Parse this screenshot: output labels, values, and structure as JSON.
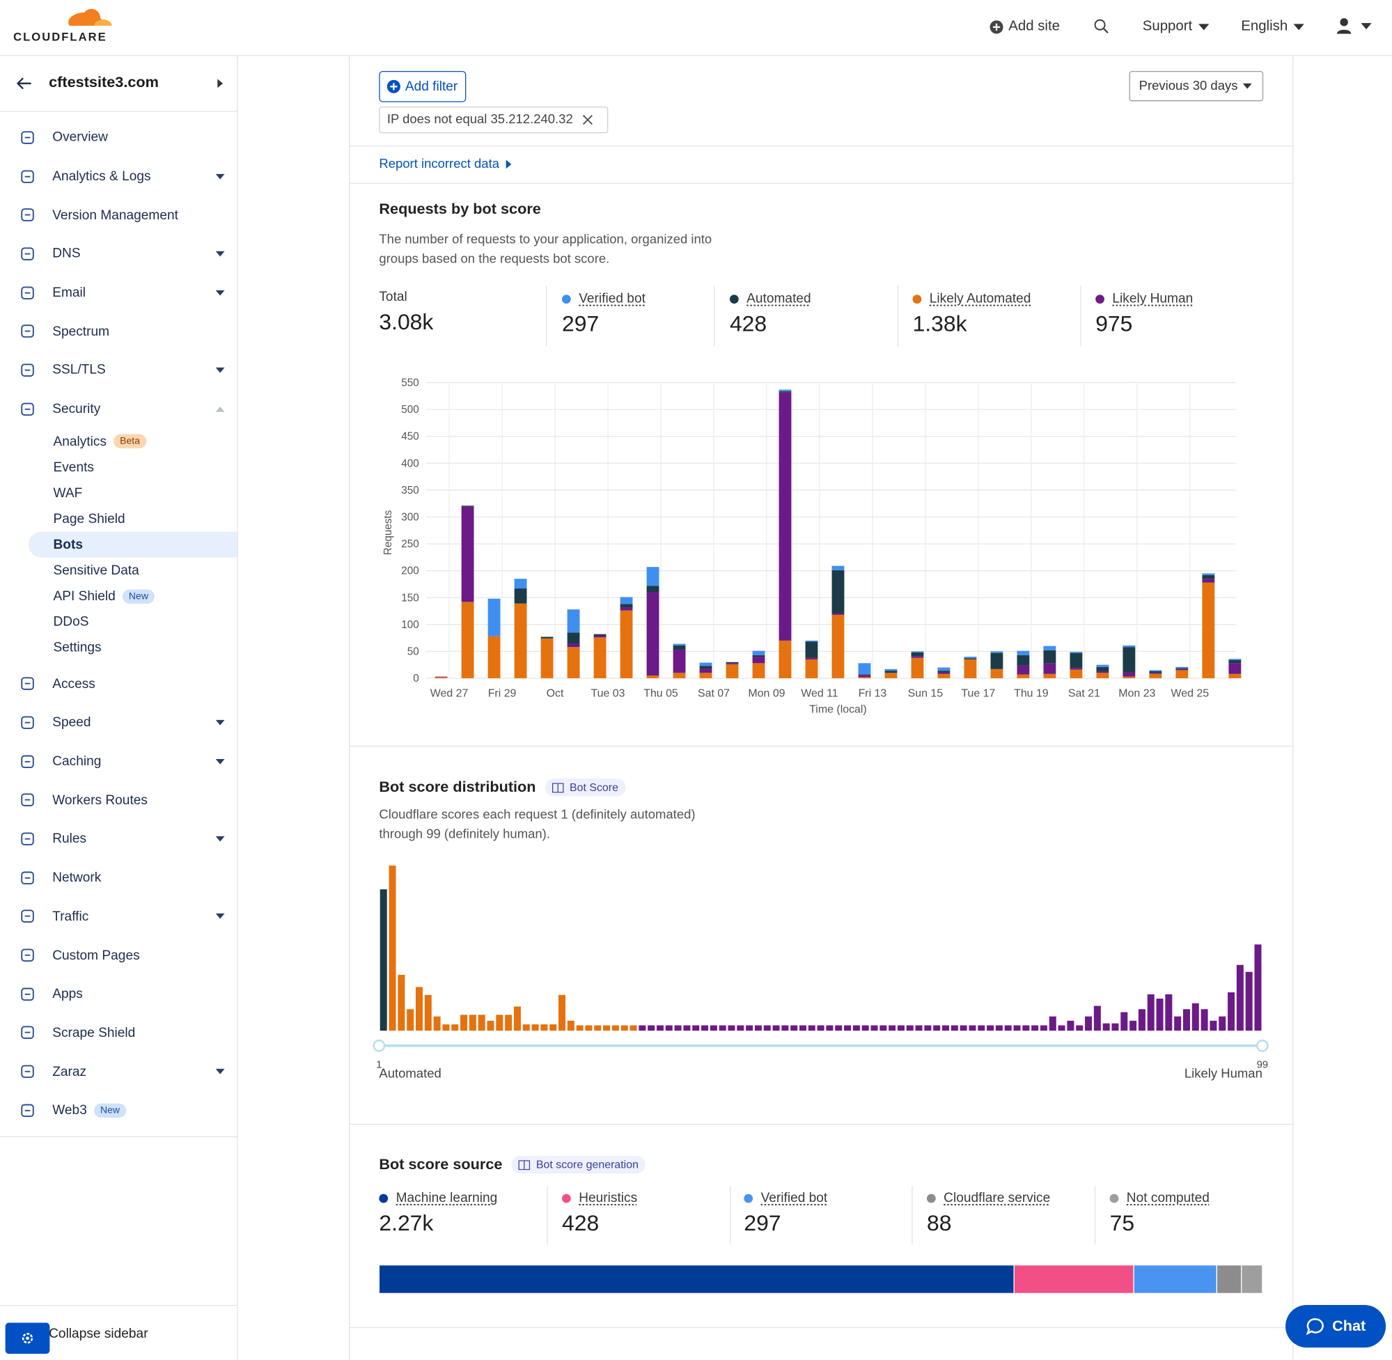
{
  "header": {
    "logo": "CLOUDFLARE",
    "add_site": "Add site",
    "support": "Support",
    "language": "English"
  },
  "sidebar": {
    "site": "cftestsite3.com",
    "items": [
      {
        "label": "Overview"
      },
      {
        "label": "Analytics & Logs",
        "dropdown": true
      },
      {
        "label": "Version Management"
      },
      {
        "label": "DNS",
        "dropdown": true
      },
      {
        "label": "Email",
        "dropdown": true
      },
      {
        "label": "Spectrum"
      },
      {
        "label": "SSL/TLS",
        "dropdown": true
      },
      {
        "label": "Security",
        "expanded": true,
        "children": [
          {
            "label": "Analytics",
            "badge": "Beta"
          },
          {
            "label": "Events"
          },
          {
            "label": "WAF"
          },
          {
            "label": "Page Shield"
          },
          {
            "label": "Bots",
            "active": true
          },
          {
            "label": "Sensitive Data"
          },
          {
            "label": "API Shield",
            "badge": "New"
          },
          {
            "label": "DDoS"
          },
          {
            "label": "Settings"
          }
        ]
      },
      {
        "label": "Access"
      },
      {
        "label": "Speed",
        "dropdown": true
      },
      {
        "label": "Caching",
        "dropdown": true
      },
      {
        "label": "Workers Routes"
      },
      {
        "label": "Rules",
        "dropdown": true
      },
      {
        "label": "Network"
      },
      {
        "label": "Traffic",
        "dropdown": true
      },
      {
        "label": "Custom Pages"
      },
      {
        "label": "Apps"
      },
      {
        "label": "Scrape Shield"
      },
      {
        "label": "Zaraz",
        "dropdown": true
      },
      {
        "label": "Web3",
        "badge": "New"
      }
    ],
    "collapse": "Collapse sidebar"
  },
  "filters": {
    "add_filter": "Add filter",
    "time_range": "Previous 30 days",
    "active": [
      "IP does not equal 35.212.240.32"
    ]
  },
  "report": "Report incorrect data",
  "chat": "Chat",
  "chart_data": [
    {
      "type": "bar",
      "stacked": true,
      "title": "Requests by bot score",
      "description": "The number of requests to your application, organized into groups based on the requests bot score.",
      "total_label": "Total",
      "total": "3.08k",
      "y_label": "Requests",
      "x_label": "Time (local)",
      "categories": [
        "Wed 27",
        null,
        "Fri 29",
        null,
        "Oct",
        null,
        "Tue 03",
        null,
        "Thu 05",
        null,
        "Sat 07",
        null,
        "Mon 09",
        null,
        "Wed 11",
        null,
        "Fri 13",
        null,
        "Sun 15",
        null,
        "Tue 17",
        null,
        "Thu 19",
        null,
        "Sat 21",
        null,
        "Mon 23",
        null,
        "Wed 25",
        null,
        null
      ],
      "stack_order": [
        2,
        3,
        1,
        0
      ],
      "series": [
        {
          "name": "Verified bot",
          "color": "#3f8ff0",
          "total": "297",
          "values": [
            0,
            0,
            70,
            18,
            0,
            43,
            0,
            13,
            35,
            3,
            6,
            0,
            8,
            3,
            2,
            8,
            21,
            3,
            2,
            6,
            3,
            3,
            8,
            8,
            2,
            4,
            3,
            2,
            2,
            3,
            2
          ]
        },
        {
          "name": "Automated",
          "color": "#1c3b49",
          "total": "428",
          "values": [
            0,
            2,
            0,
            28,
            3,
            21,
            3,
            6,
            12,
            8,
            5,
            2,
            3,
            2,
            30,
            80,
            1,
            4,
            7,
            3,
            2,
            30,
            19,
            24,
            28,
            8,
            47,
            3,
            2,
            7,
            6
          ]
        },
        {
          "name": "Likely Automated",
          "color": "#e5720e",
          "total": "1.38k",
          "values": [
            2,
            142,
            78,
            139,
            74,
            58,
            76,
            126,
            5,
            10,
            10,
            26,
            28,
            70,
            35,
            118,
            2,
            10,
            38,
            8,
            35,
            17,
            7,
            8,
            16,
            10,
            3,
            8,
            15,
            178,
            8
          ]
        },
        {
          "name": "Likely Human",
          "color": "#6c1a87",
          "total": "975",
          "values": [
            1,
            177,
            0,
            0,
            0,
            6,
            3,
            6,
            155,
            43,
            8,
            2,
            12,
            462,
            3,
            3,
            4,
            0,
            3,
            3,
            0,
            0,
            17,
            20,
            3,
            3,
            8,
            2,
            2,
            7,
            20
          ]
        }
      ],
      "ylim": [
        0,
        550
      ],
      "yticks": [
        0,
        50,
        100,
        150,
        200,
        250,
        300,
        350,
        400,
        450,
        500,
        550
      ],
      "grid": true
    },
    {
      "type": "bar",
      "title": "Bot score distribution",
      "badge": "Bot Score",
      "description": "Cloudflare scores each request 1 (definitely automated) through 99 (definitely human).",
      "x": [
        1,
        2,
        3,
        4,
        5,
        6,
        7,
        8,
        9,
        10,
        11,
        12,
        13,
        14,
        15,
        16,
        17,
        18,
        19,
        20,
        21,
        22,
        23,
        24,
        25,
        26,
        27,
        28,
        29,
        30,
        31,
        32,
        33,
        34,
        35,
        36,
        37,
        38,
        39,
        40,
        41,
        42,
        43,
        44,
        45,
        46,
        47,
        48,
        49,
        50,
        51,
        52,
        53,
        54,
        55,
        56,
        57,
        58,
        59,
        60,
        61,
        62,
        63,
        64,
        65,
        66,
        67,
        68,
        69,
        70,
        71,
        72,
        73,
        74,
        75,
        76,
        77,
        78,
        79,
        80,
        81,
        82,
        83,
        84,
        85,
        86,
        87,
        88,
        89,
        90,
        91,
        92,
        93,
        94,
        95,
        96,
        97,
        98,
        99
      ],
      "values": [
        428,
        500,
        169,
        65,
        132,
        108,
        43,
        19,
        19,
        48,
        48,
        48,
        30,
        48,
        48,
        73,
        19,
        19,
        19,
        19,
        108,
        30,
        16,
        16,
        16,
        16,
        16,
        16,
        16,
        16,
        16,
        16,
        16,
        16,
        16,
        16,
        16,
        16,
        16,
        16,
        16,
        16,
        16,
        16,
        16,
        16,
        16,
        16,
        16,
        16,
        16,
        16,
        16,
        16,
        16,
        16,
        16,
        16,
        16,
        16,
        16,
        16,
        16,
        16,
        16,
        16,
        16,
        16,
        16,
        16,
        16,
        16,
        16,
        16,
        16,
        43,
        16,
        30,
        16,
        43,
        75,
        22,
        22,
        56,
        30,
        65,
        110,
        97,
        110,
        43,
        65,
        83,
        65,
        30,
        43,
        116,
        199,
        178,
        261
      ],
      "color_ranges": [
        {
          "from": 1,
          "color": "#1c3b49"
        },
        {
          "from": 2,
          "color": "#e5720e"
        },
        {
          "from": 30,
          "color": "#6c1a87"
        }
      ],
      "xlim": [
        1,
        99
      ],
      "xticks": [
        1,
        99
      ],
      "range_labels": [
        "Automated",
        "Likely Human"
      ]
    },
    {
      "type": "bar",
      "orientation": "horizontal",
      "stacked": true,
      "title": "Bot score source",
      "badge": "Bot score generation",
      "series": [
        {
          "name": "Machine learning",
          "color": "#003c96",
          "values": [
            2270
          ],
          "value_labels": [
            "2.27k"
          ]
        },
        {
          "name": "Heuristics",
          "color": "#f24f87",
          "values": [
            428
          ],
          "value_labels": [
            "428"
          ]
        },
        {
          "name": "Verified bot",
          "color": "#4b93f0",
          "values": [
            297
          ],
          "value_labels": [
            "297"
          ]
        },
        {
          "name": "Cloudflare service",
          "color": "#8c8c8c",
          "values": [
            88
          ],
          "value_labels": [
            "88"
          ]
        },
        {
          "name": "Not computed",
          "color": "#9e9e9e",
          "values": [
            75
          ],
          "value_labels": [
            "75"
          ]
        }
      ]
    }
  ]
}
